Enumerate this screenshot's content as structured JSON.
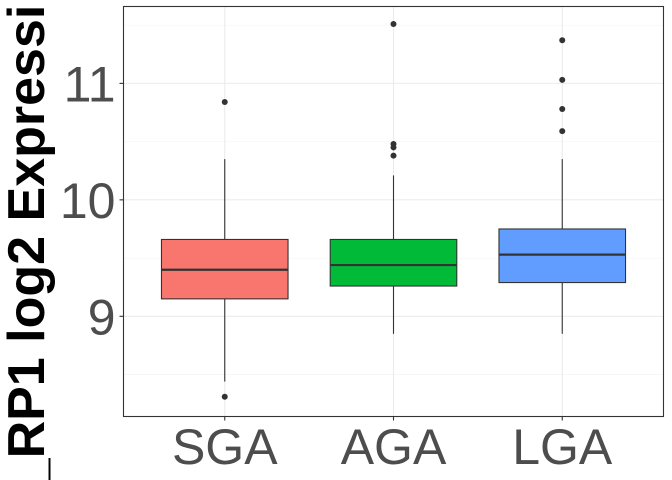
{
  "chart_data": {
    "type": "box",
    "title": "",
    "xlabel": "",
    "ylabel": "...RP1 log2 Expressi...",
    "ylabel_visible": "_RP1 log2 Expressi",
    "categories": [
      "SGA",
      "AGA",
      "LGA"
    ],
    "ylim": [
      8.14,
      11.66
    ],
    "yticks": [
      9,
      10,
      11
    ],
    "ytick_labels": [
      "9",
      "10",
      "11"
    ],
    "grid": true,
    "legend": "none",
    "series": [
      {
        "category": "SGA",
        "color": "#F8766D",
        "whisker_low": 8.44,
        "q1": 9.15,
        "median": 9.4,
        "q3": 9.66,
        "whisker_high": 10.35,
        "outliers": [
          10.84,
          8.31
        ]
      },
      {
        "category": "AGA",
        "color": "#00BA38",
        "whisker_low": 8.85,
        "q1": 9.26,
        "median": 9.44,
        "q3": 9.66,
        "whisker_high": 10.21,
        "outliers": [
          11.51,
          10.48,
          10.45,
          10.38
        ]
      },
      {
        "category": "LGA",
        "color": "#619CFF",
        "whisker_low": 8.85,
        "q1": 9.29,
        "median": 9.53,
        "q3": 9.75,
        "whisker_high": 10.35,
        "outliers": [
          11.37,
          11.03,
          10.78,
          10.59
        ]
      }
    ]
  }
}
